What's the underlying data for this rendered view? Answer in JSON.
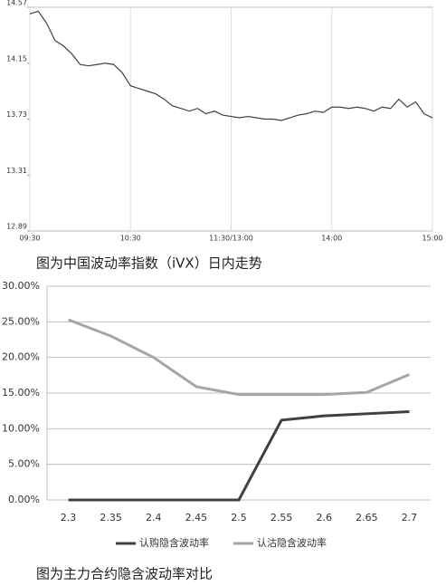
{
  "chart_data": [
    {
      "type": "line",
      "caption": "图为中国波动率指数（iVX）日内走势",
      "x": [
        0,
        5,
        10,
        15,
        20,
        25,
        30,
        35,
        40,
        45,
        50,
        55,
        60,
        65,
        70,
        75,
        80,
        85,
        90,
        95,
        100,
        105,
        110,
        115,
        120,
        125,
        130,
        135,
        140,
        145,
        150,
        155,
        160,
        165,
        170,
        175,
        180,
        185,
        190,
        195,
        200,
        205,
        210,
        215,
        220,
        225,
        230,
        235,
        240
      ],
      "series": [
        {
          "color": "#404040",
          "values": [
            14.52,
            14.54,
            14.45,
            14.32,
            14.28,
            14.22,
            14.14,
            14.13,
            14.14,
            14.15,
            14.14,
            14.08,
            13.98,
            13.96,
            13.94,
            13.92,
            13.88,
            13.83,
            13.81,
            13.79,
            13.81,
            13.77,
            13.79,
            13.76,
            13.75,
            13.74,
            13.75,
            13.74,
            13.73,
            13.73,
            13.72,
            13.74,
            13.76,
            13.77,
            13.79,
            13.78,
            13.82,
            13.82,
            13.81,
            13.82,
            13.81,
            13.79,
            13.82,
            13.81,
            13.88,
            13.82,
            13.86,
            13.77,
            13.74
          ]
        }
      ],
      "xlim": [
        0,
        240
      ],
      "xticks": [
        {
          "value": 0,
          "label": "09:30"
        },
        {
          "value": 60,
          "label": "10:30"
        },
        {
          "value": 120,
          "label": "11:30/13:00"
        },
        {
          "value": 180,
          "label": "14:00"
        },
        {
          "value": 240,
          "label": "15:00"
        }
      ],
      "ylim": [
        12.89,
        14.57
      ],
      "yticks": [
        12.89,
        13.31,
        13.73,
        14.15,
        14.57
      ],
      "grid": "x"
    },
    {
      "type": "line",
      "caption": "图为主力合约隐含波动率对比",
      "categories": [
        "2.3",
        "2.35",
        "2.4",
        "2.45",
        "2.5",
        "2.55",
        "2.6",
        "2.65",
        "2.7"
      ],
      "series": [
        {
          "name": "认购隐含波动率",
          "color": "#404040",
          "values": [
            0,
            0,
            0,
            0,
            0,
            11.2,
            11.8,
            12.1,
            12.4
          ]
        },
        {
          "name": "认沽隐含波动率",
          "color": "#a6a6a6",
          "values": [
            25.3,
            23.0,
            20.0,
            15.9,
            14.8,
            14.8,
            14.8,
            15.1,
            17.6
          ]
        }
      ],
      "ylim": [
        0,
        30
      ],
      "yticks": [
        {
          "value": 0,
          "label": "0.00%"
        },
        {
          "value": 5,
          "label": "5.00%"
        },
        {
          "value": 10,
          "label": "10.00%"
        },
        {
          "value": 15,
          "label": "15.00%"
        },
        {
          "value": 20,
          "label": "20.00%"
        },
        {
          "value": 25,
          "label": "25.00%"
        },
        {
          "value": 30,
          "label": "30.00%"
        }
      ],
      "grid": "y",
      "legend": "bottom"
    }
  ]
}
